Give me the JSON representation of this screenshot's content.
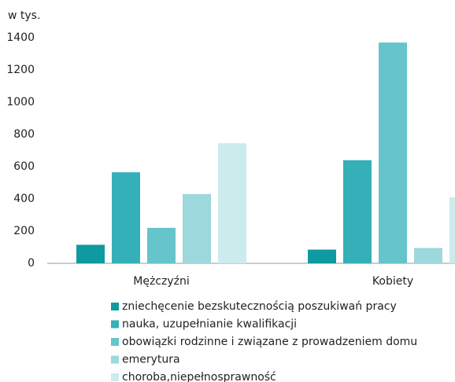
{
  "chart_data": {
    "type": "bar",
    "y_label": "w tys.",
    "categories": [
      "Mężczyźni",
      "Kobiety"
    ],
    "series": [
      {
        "name": "zniechęcenie bezskutecznością poszukiwań pracy",
        "color": "#0e9aa0",
        "values": [
          115,
          85
        ]
      },
      {
        "name": "nauka, uzupełnianie kwalifikacji",
        "color": "#35b0b8",
        "values": [
          565,
          640
        ]
      },
      {
        "name": "obowiązki rodzinne i związane z prowadzeniem domu",
        "color": "#66c4cb",
        "values": [
          220,
          1370
        ]
      },
      {
        "name": "emerytura",
        "color": "#9cd8dc",
        "values": [
          430,
          95
        ]
      },
      {
        "name": "choroba,niepełnosprawność",
        "color": "#cbebec",
        "values": [
          745,
          410
        ]
      }
    ],
    "ylim": [
      0,
      1400
    ],
    "yticks": [
      0,
      200,
      400,
      600,
      800,
      1000,
      1200,
      1400
    ],
    "grid": false
  }
}
